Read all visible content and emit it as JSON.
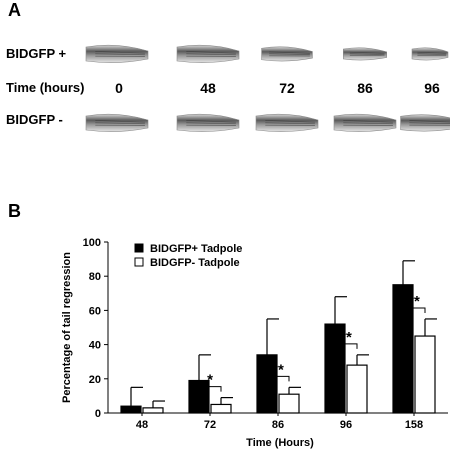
{
  "panel_a": {
    "letter": "A",
    "row_plus_label": "BIDGFP +",
    "time_label": "Time (hours)",
    "row_minus_label": "BIDGFP -",
    "times": [
      "0",
      "48",
      "72",
      "86",
      "96"
    ],
    "tadpole_scale_plus": [
      1.0,
      1.0,
      0.82,
      0.7,
      0.58
    ],
    "tadpole_scale_minus": [
      1.0,
      1.0,
      1.0,
      1.0,
      0.95
    ]
  },
  "panel_b": {
    "letter": "B"
  },
  "chart_data": {
    "type": "bar",
    "categories": [
      "48",
      "72",
      "86",
      "96",
      "158"
    ],
    "series": [
      {
        "name": "BIDGFP+ Tadpole",
        "values": [
          4,
          19,
          34,
          52,
          75
        ],
        "errors": [
          11,
          15,
          21,
          16,
          14
        ],
        "color": "#000000"
      },
      {
        "name": "BIDGFP- Tadpole",
        "values": [
          3,
          5,
          11,
          28,
          45
        ],
        "errors": [
          4,
          4,
          4,
          6,
          10
        ],
        "color": "#ffffff"
      }
    ],
    "significance": [
      "",
      "*",
      "**",
      "**",
      "**"
    ],
    "xlabel": "Time (Hours)",
    "ylabel": "Percentage of tail regression",
    "ylim": [
      0,
      100
    ],
    "yticks": [
      "0",
      "20",
      "40",
      "60",
      "80",
      "100"
    ],
    "legend_position": "top-left"
  }
}
